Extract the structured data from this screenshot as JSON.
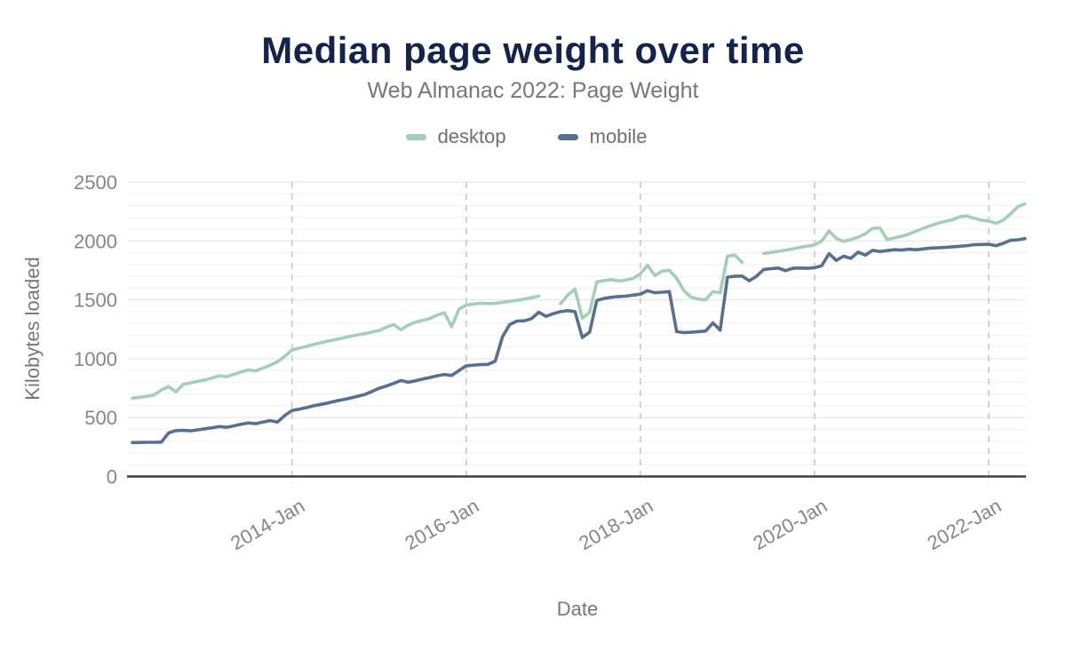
{
  "header": {
    "title": "Median page weight over time",
    "subtitle": "Web Almanac 2022: Page Weight"
  },
  "legend": [
    {
      "label": "desktop",
      "color": "#a4ceb7"
    },
    {
      "label": "mobile",
      "color": "#58708f"
    }
  ],
  "chart_data": {
    "type": "line",
    "title": "Median page weight over time",
    "subtitle": "Web Almanac 2022: Page Weight",
    "xlabel": "Date",
    "ylabel": "Kilobytes loaded",
    "ylim": [
      0,
      2500
    ],
    "yticks": [
      0,
      500,
      1000,
      1500,
      2000,
      2500
    ],
    "xticks": [
      "2014-Jan",
      "2016-Jan",
      "2018-Jan",
      "2020-Jan",
      "2022-Jan"
    ],
    "xtick_indices": [
      22,
      46,
      70,
      94,
      118
    ],
    "grid": {
      "y_minor_step": 100,
      "y_major_step": 500,
      "x_dashed_at_ticks": true
    },
    "legend_position": "top",
    "units": "KB",
    "x": [
      "2012-03",
      "2012-04",
      "2012-05",
      "2012-06",
      "2012-07",
      "2012-08",
      "2012-09",
      "2012-10",
      "2012-11",
      "2012-12",
      "2013-01",
      "2013-02",
      "2013-03",
      "2013-04",
      "2013-05",
      "2013-06",
      "2013-07",
      "2013-08",
      "2013-09",
      "2013-10",
      "2013-11",
      "2013-12",
      "2014-01",
      "2014-02",
      "2014-03",
      "2014-04",
      "2014-05",
      "2014-06",
      "2014-07",
      "2014-08",
      "2014-09",
      "2014-10",
      "2014-11",
      "2014-12",
      "2015-01",
      "2015-02",
      "2015-03",
      "2015-04",
      "2015-05",
      "2015-06",
      "2015-07",
      "2015-08",
      "2015-09",
      "2015-10",
      "2015-11",
      "2015-12",
      "2016-01",
      "2016-02",
      "2016-03",
      "2016-04",
      "2016-05",
      "2016-06",
      "2016-07",
      "2016-08",
      "2016-09",
      "2016-10",
      "2016-11",
      "2016-12",
      "2017-01",
      "2017-02",
      "2017-03",
      "2017-04",
      "2017-05",
      "2017-06",
      "2017-07",
      "2017-08",
      "2017-09",
      "2017-10",
      "2017-11",
      "2017-12",
      "2018-01",
      "2018-02",
      "2018-03",
      "2018-04",
      "2018-05",
      "2018-06",
      "2018-07",
      "2018-08",
      "2018-09",
      "2018-10",
      "2018-11",
      "2018-12",
      "2019-01",
      "2019-02",
      "2019-03",
      "2019-04",
      "2019-05",
      "2019-06",
      "2019-07",
      "2019-08",
      "2019-09",
      "2019-10",
      "2019-11",
      "2019-12",
      "2020-01",
      "2020-02",
      "2020-03",
      "2020-04",
      "2020-05",
      "2020-06",
      "2020-07",
      "2020-08",
      "2020-09",
      "2020-10",
      "2020-11",
      "2020-12",
      "2021-01",
      "2021-02",
      "2021-03",
      "2021-04",
      "2021-05",
      "2021-06",
      "2021-07",
      "2021-08",
      "2021-09",
      "2021-10",
      "2021-11",
      "2021-12",
      "2022-01",
      "2022-02",
      "2022-03",
      "2022-04",
      "2022-05",
      "2022-06"
    ],
    "series": [
      {
        "name": "desktop",
        "color": "#a4ceb7",
        "values": [
          665,
          672,
          680,
          692,
          735,
          764,
          719,
          782,
          795,
          808,
          820,
          836,
          855,
          848,
          868,
          888,
          905,
          897,
          920,
          945,
          975,
          1020,
          1075,
          1090,
          1105,
          1122,
          1136,
          1150,
          1162,
          1176,
          1190,
          1202,
          1212,
          1226,
          1240,
          1268,
          1290,
          1246,
          1285,
          1310,
          1326,
          1342,
          1370,
          1390,
          1272,
          1420,
          1455,
          1464,
          1472,
          1468,
          1471,
          1478,
          1488,
          1496,
          1506,
          1518,
          1532,
          null,
          null,
          1468,
          1540,
          1592,
          1345,
          1392,
          1652,
          1664,
          1672,
          1660,
          1668,
          1682,
          1722,
          1794,
          1706,
          1744,
          1750,
          1683,
          1578,
          1522,
          1506,
          1500,
          1570,
          1560,
          1871,
          1881,
          1820,
          null,
          null,
          1894,
          1902,
          1912,
          1922,
          1932,
          1946,
          1956,
          1966,
          2000,
          2086,
          2022,
          1996,
          2012,
          2032,
          2062,
          2106,
          2110,
          2012,
          2026,
          2040,
          2058,
          2084,
          2108,
          2130,
          2150,
          2165,
          2180,
          2205,
          2212,
          2192,
          2176,
          2170,
          2150,
          2176,
          2230,
          2290,
          2316
        ]
      },
      {
        "name": "mobile",
        "color": "#58708f",
        "values": [
          288,
          289,
          290,
          290,
          292,
          370,
          390,
          392,
          388,
          396,
          405,
          414,
          424,
          418,
          430,
          444,
          455,
          449,
          462,
          474,
          462,
          518,
          560,
          572,
          585,
          600,
          612,
          625,
          640,
          652,
          665,
          680,
          695,
          722,
          750,
          768,
          790,
          815,
          800,
          812,
          828,
          840,
          855,
          866,
          858,
          900,
          940,
          945,
          950,
          952,
          980,
          1185,
          1290,
          1320,
          1322,
          1340,
          1395,
          1360,
          1382,
          1400,
          1408,
          1400,
          1180,
          1225,
          1495,
          1512,
          1522,
          1528,
          1532,
          1540,
          1548,
          1578,
          1560,
          1565,
          1570,
          1230,
          1222,
          1225,
          1230,
          1235,
          1305,
          1242,
          1693,
          1700,
          1702,
          1662,
          1700,
          1758,
          1765,
          1770,
          1748,
          1768,
          1770,
          1768,
          1772,
          1790,
          1892,
          1835,
          1870,
          1852,
          1905,
          1880,
          1920,
          1910,
          1918,
          1925,
          1922,
          1930,
          1925,
          1932,
          1940,
          1942,
          1945,
          1950,
          1955,
          1960,
          1968,
          1970,
          1972,
          1960,
          1980,
          2005,
          2010,
          2020
        ]
      }
    ]
  },
  "colors": {
    "title": "#13234b",
    "subtitle": "#77777b",
    "tick_labels": "#86868a",
    "axis_line": "#3c3c40",
    "grid_minor": "#f1f1f4",
    "grid_major": "#e3e3e7",
    "grid_dashed": "#c8c8cc"
  }
}
